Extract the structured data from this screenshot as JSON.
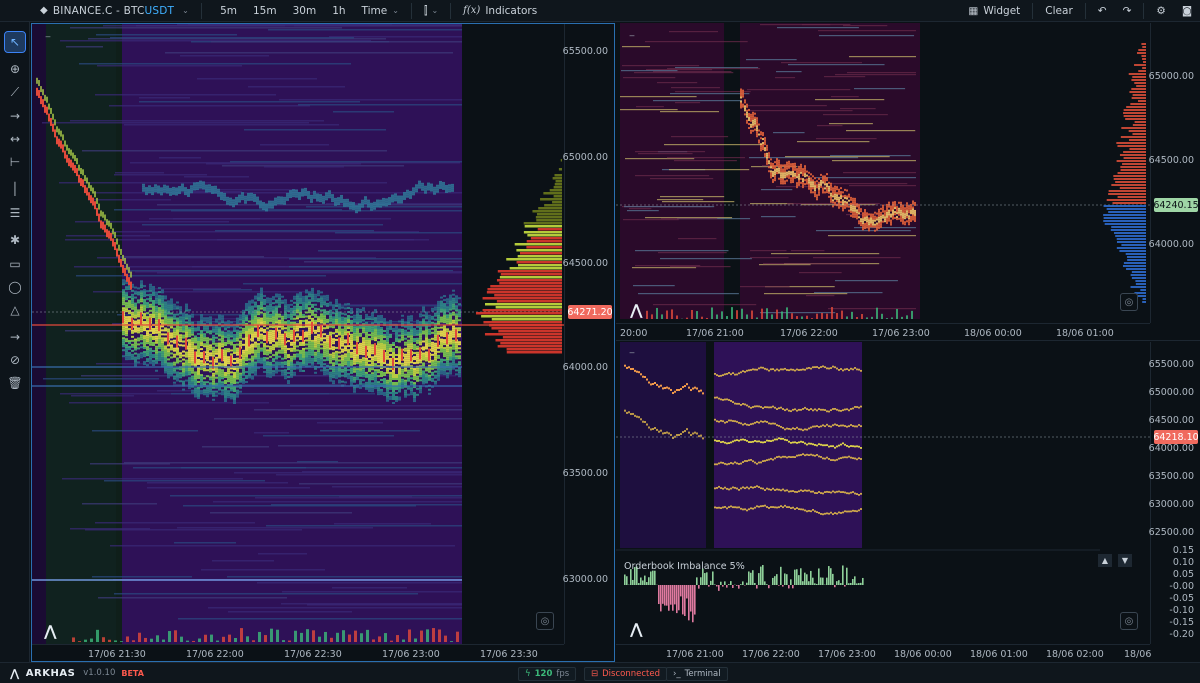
{
  "toolbar": {
    "symbol_prefix": "BINANCE.C - BTC",
    "symbol_quote": "USDT",
    "timeframes": [
      "5m",
      "15m",
      "30m",
      "1h"
    ],
    "time_label": "Time",
    "indicators_prefix": "f(x)",
    "indicators_label": "Indicators",
    "widget_label": "Widget",
    "clear_label": "Clear"
  },
  "tools": [
    "cursor-arrow-icon",
    "crosshair-icon",
    "trendline-icon",
    "ray-icon",
    "extended-line-icon",
    "horizontal-segment-icon",
    "vertical-line-icon",
    "horizontal-lines-icon",
    "cycle-icon",
    "rectangle-icon",
    "ellipse-icon",
    "triangle-icon",
    "arrow-icon",
    "hide-icon",
    "trash-icon"
  ],
  "main_chart": {
    "y_ticks": [
      "65500.00",
      "65000.00",
      "64500.00",
      "64000.00",
      "63500.00",
      "63000.00"
    ],
    "x_ticks": [
      "17/06 21:30",
      "17/06 22:00",
      "17/06 22:30",
      "17/06 23:00",
      "17/06 23:30"
    ],
    "last_price": "64271.20"
  },
  "top_right_chart": {
    "y_ticks": [
      "65000.00",
      "64500.00",
      "64000.00"
    ],
    "x_ticks": [
      "20:00",
      "17/06 21:00",
      "17/06 22:00",
      "17/06 23:00",
      "18/06 00:00",
      "18/06 01:00"
    ],
    "last_price": "64240.15"
  },
  "bottom_right_chart": {
    "y_ticks": [
      "65500.00",
      "65000.00",
      "64500.00",
      "64000.00",
      "63500.00",
      "63000.00",
      "62500.00"
    ],
    "x_ticks": [
      "17/06 21:00",
      "17/06 22:00",
      "17/06 23:00",
      "18/06 00:00",
      "18/06 01:00",
      "18/06 02:00",
      "18/06"
    ],
    "last_price": "64218.10",
    "indicator_title": "Orderbook Imbalance 5%",
    "indicator_ticks": [
      "0.15",
      "0.10",
      "0.05",
      "-0.00",
      "-0.05",
      "-0.10",
      "-0.15",
      "-0.20"
    ]
  },
  "statusbar": {
    "brand": "ARKHAS",
    "version": "v1.0.10",
    "beta": "BETA",
    "fps": "120",
    "fps_unit": "fps",
    "connection": "Disconnected",
    "terminal": "Terminal"
  },
  "colors": {
    "heat_bg": "#2a0f4f",
    "accent_blue": "#2a6fb0",
    "price_red": "#e24a3b",
    "price_green": "#3cba7a",
    "ask_red": "#e03a2e",
    "bid_blue": "#2f6fd6"
  }
}
